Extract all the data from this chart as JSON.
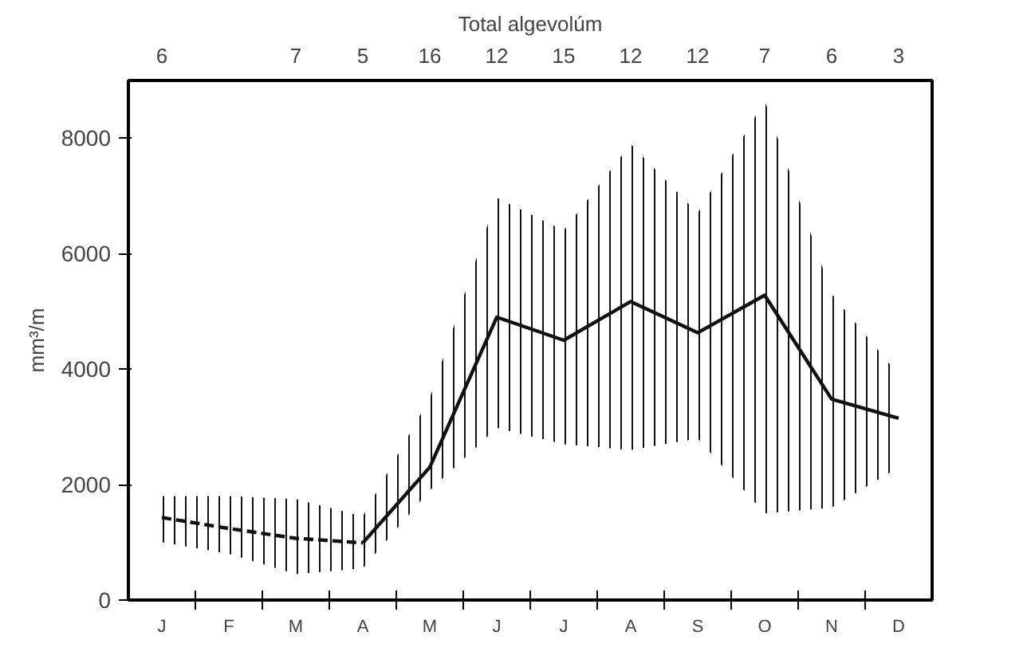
{
  "chart_data": {
    "type": "line",
    "title": "Total algevolúm",
    "ylabel": "mm³/m",
    "categories": [
      "J",
      "F",
      "M",
      "A",
      "M",
      "J",
      "J",
      "A",
      "S",
      "O",
      "N",
      "D"
    ],
    "ylim": [
      0,
      9000
    ],
    "yticks": [
      0,
      2000,
      4000,
      6000,
      8000
    ],
    "series": [
      {
        "color": "#111111",
        "line_style": "dashed",
        "values": [
          1430,
          1240,
          1070,
          990,
          null,
          null,
          null,
          null,
          null,
          null,
          null,
          null
        ],
        "lower": [
          1000,
          800,
          450,
          550,
          null,
          null,
          null,
          null,
          null,
          null,
          null,
          null
        ],
        "upper": [
          1800,
          1800,
          1750,
          1450,
          null,
          null,
          null,
          null,
          null,
          null,
          null,
          null
        ]
      },
      {
        "color": "#111111",
        "line_style": "solid",
        "values": [
          null,
          null,
          null,
          990,
          2300,
          4900,
          4500,
          5170,
          4630,
          5280,
          3480,
          3150
        ],
        "lower": [
          null,
          null,
          null,
          550,
          1900,
          2980,
          2700,
          2600,
          2800,
          1500,
          1600,
          2300
        ],
        "upper": [
          null,
          null,
          null,
          1450,
          3500,
          6970,
          6400,
          7900,
          6700,
          8650,
          5300,
          3900
        ]
      }
    ],
    "annotations": [
      "6",
      "7",
      "5",
      "16",
      "12",
      "15",
      "12",
      "12",
      "7",
      "6",
      "3"
    ],
    "grid": false,
    "marker": "none"
  }
}
